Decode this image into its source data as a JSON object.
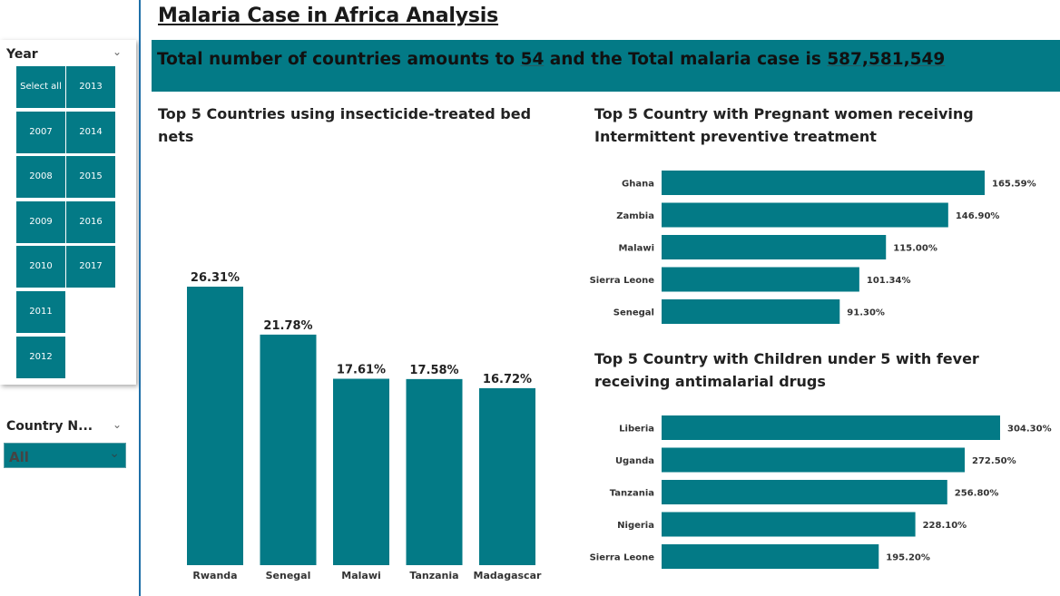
{
  "page_title": "Malaria Case in Africa Analysis",
  "kpi": {
    "prefix": "Total number of countries amounts to ",
    "countries": "54",
    "middle": " and the Total malaria case is ",
    "cases": "587,581,549"
  },
  "colors": {
    "accent": "#037a86",
    "divider": "#1f6fa8"
  },
  "slicers": {
    "year": {
      "title": "Year",
      "icon": "chevron-down-icon",
      "items": [
        "Select all",
        "2013",
        "2007",
        "2014",
        "2008",
        "2015",
        "2009",
        "2016",
        "2010",
        "2017",
        "2011",
        "2012"
      ]
    },
    "country": {
      "title": "Country N...",
      "icon": "chevron-down-icon",
      "selected": "All",
      "dropdown_icon": "chevron-down-icon"
    }
  },
  "chart_data": [
    {
      "type": "bar",
      "title": "Top 5 Countries using insecticide-treated bed nets",
      "categories": [
        "Rwanda",
        "Senegal",
        "Malawi",
        "Tanzania",
        "Madagascar"
      ],
      "values": [
        26.31,
        21.78,
        17.61,
        17.58,
        16.72
      ],
      "value_labels": [
        "26.31%",
        "21.78%",
        "17.61%",
        "17.58%",
        "16.72%"
      ],
      "orientation": "vertical",
      "grid": false,
      "ylim": [
        0,
        28
      ]
    },
    {
      "type": "bar",
      "title": "Top 5 Country with Pregnant women receiving Intermittent preventive treatment",
      "categories": [
        "Ghana",
        "Zambia",
        "Malawi",
        "Sierra Leone",
        "Senegal"
      ],
      "values": [
        165.59,
        146.9,
        115.0,
        101.34,
        91.3
      ],
      "value_labels": [
        "165.59%",
        "146.90%",
        "115.00%",
        "101.34%",
        "91.30%"
      ],
      "orientation": "horizontal",
      "grid": false,
      "xlim": [
        0,
        165.59
      ]
    },
    {
      "type": "bar",
      "title": "Top 5 Country with Children under 5 with fever receiving antimalarial drugs",
      "categories": [
        "Liberia",
        "Uganda",
        "Tanzania",
        "Nigeria",
        "Sierra Leone"
      ],
      "values": [
        304.3,
        272.5,
        256.8,
        228.1,
        195.2
      ],
      "value_labels": [
        "304.30%",
        "272.50%",
        "256.80%",
        "228.10%",
        "195.20%"
      ],
      "orientation": "horizontal",
      "grid": false,
      "xlim": [
        0,
        304.3
      ]
    }
  ]
}
